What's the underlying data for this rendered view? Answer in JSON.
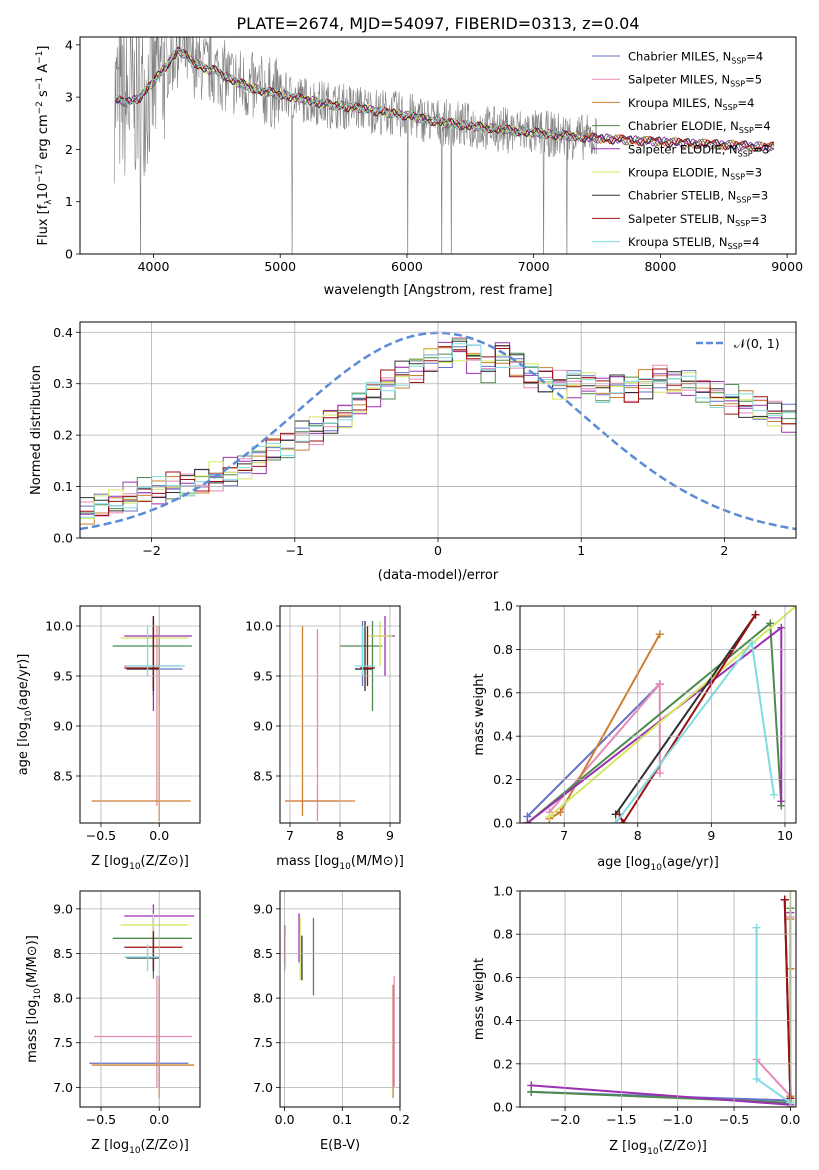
{
  "figure": {
    "title": "PLATE=2674, MJD=54097, FIBERID=0313, z=0.04"
  },
  "series": [
    {
      "label": "Chabrier MILES",
      "nssp": "4",
      "color": "#6670c8"
    },
    {
      "label": "Salpeter MILES",
      "nssp": "5",
      "color": "#e889b8"
    },
    {
      "label": "Kroupa MILES",
      "nssp": "4",
      "color": "#cd7f32"
    },
    {
      "label": "Chabrier ELODIE",
      "nssp": "4",
      "color": "#4e8a4e"
    },
    {
      "label": "Salpeter ELODIE",
      "nssp": "3",
      "color": "#9b30b0"
    },
    {
      "label": "Kroupa ELODIE",
      "nssp": "3",
      "color": "#d4e860"
    },
    {
      "label": "Chabrier STELIB",
      "nssp": "3",
      "color": "#303030"
    },
    {
      "label": "Salpeter STELIB",
      "nssp": "3",
      "color": "#9c1010"
    },
    {
      "label": "Kroupa STELIB",
      "nssp": "4",
      "color": "#80dce0"
    }
  ],
  "chart_data": [
    {
      "id": "spectrum",
      "type": "line",
      "title": "PLATE=2674, MJD=54097, FIBERID=0313, z=0.04",
      "xlabel": "wavelength [Angstrom, rest frame]",
      "ylabel_parts": [
        "Flux [f",
        "λ",
        "10",
        "−17",
        " erg cm",
        "−2",
        " s",
        "−1",
        " A",
        "−1",
        "]"
      ],
      "xlim": [
        3420,
        9070
      ],
      "ylim": [
        0,
        4.15
      ],
      "xticks": [
        4000,
        5000,
        6000,
        7000,
        8000,
        9000
      ],
      "yticks": [
        0,
        1,
        2,
        3,
        4
      ],
      "grid": false,
      "legend": "upper-right",
      "data_color": "#808080",
      "data_range": [
        3690,
        7500
      ],
      "model_x": [
        3700,
        3800,
        3900,
        4000,
        4100,
        4200,
        4300,
        4400,
        4500,
        4600,
        4800,
        5000,
        5200,
        5400,
        5600,
        5800,
        6000,
        6200,
        6400,
        6600,
        6800,
        7000,
        7200,
        7400,
        7600,
        7800,
        8000,
        8200,
        8400,
        8600,
        8800
      ],
      "model_y": [
        2.95,
        2.9,
        3.0,
        3.3,
        3.6,
        3.9,
        3.7,
        3.55,
        3.5,
        3.35,
        3.15,
        3.05,
        2.95,
        2.85,
        2.8,
        2.72,
        2.65,
        2.55,
        2.48,
        2.42,
        2.37,
        2.32,
        2.27,
        2.23,
        2.2,
        2.17,
        2.15,
        2.12,
        2.1,
        2.08,
        2.05
      ],
      "model_ranges": [
        [
          3700,
          8900
        ],
        [
          3700,
          8900
        ],
        [
          3700,
          8900
        ],
        [
          3700,
          8900
        ],
        [
          3700,
          8900
        ],
        [
          3940,
          7400
        ],
        [
          3700,
          8900
        ],
        [
          3700,
          8900
        ],
        [
          3700,
          7400
        ]
      ]
    },
    {
      "id": "residuals",
      "type": "line",
      "xlabel": "(data-model)/error",
      "ylabel": "Normed distribution",
      "xlim": [
        -2.5,
        2.5
      ],
      "ylim": [
        0,
        0.42
      ],
      "xticks": [
        -2,
        -1,
        0,
        1,
        2
      ],
      "yticks": [
        0.0,
        0.1,
        0.2,
        0.3,
        0.4
      ],
      "grid": true,
      "legend": "upper-right",
      "gauss_label": "𝒩(0, 1)",
      "gauss_color": "#5b8bd8",
      "bin_width": 0.1,
      "hist_base": [
        0.05,
        0.06,
        0.07,
        0.08,
        0.09,
        0.09,
        0.1,
        0.1,
        0.11,
        0.12,
        0.13,
        0.14,
        0.15,
        0.17,
        0.18,
        0.2,
        0.21,
        0.23,
        0.24,
        0.26,
        0.28,
        0.3,
        0.32,
        0.33,
        0.35,
        0.36,
        0.37,
        0.35,
        0.33,
        0.36,
        0.34,
        0.32,
        0.31,
        0.3,
        0.3,
        0.3,
        0.29,
        0.3,
        0.29,
        0.3,
        0.31,
        0.3,
        0.3,
        0.29,
        0.28,
        0.27,
        0.26,
        0.25,
        0.24,
        0.23,
        0.22,
        0.21,
        0.2,
        0.19,
        0.17,
        0.16,
        0.15,
        0.14,
        0.13,
        0.12,
        0.11,
        0.1,
        0.09,
        0.09,
        0.08,
        0.07,
        0.07,
        0.06,
        0.06,
        0.05
      ]
    },
    {
      "id": "age-vs-z",
      "type": "scatter",
      "xlabel": "Z [log10(Z/Z⊙)]",
      "ylabel": "age  [log10(age/yr)]",
      "xlim": [
        -0.68,
        0.35
      ],
      "ylim": [
        8.03,
        10.2
      ],
      "xticks": [
        -0.5,
        0.0
      ],
      "yticks": [
        8.5,
        9.0,
        9.5,
        10.0
      ],
      "grid": true,
      "crosses": [
        {
          "s": 0,
          "x": 0.0,
          "y": 9.57,
          "xr": [
            -0.28,
            0.2
          ],
          "yr": [
            9.2,
            10.0
          ]
        },
        {
          "s": 1,
          "x": -0.02,
          "y": 9.6,
          "xr": [
            -0.3,
            0.18
          ],
          "yr": [
            8.2,
            10.0
          ]
        },
        {
          "s": 2,
          "x": 0.0,
          "y": 8.25,
          "xr": [
            -0.58,
            0.27
          ],
          "yr": [
            8.05,
            10.0
          ]
        },
        {
          "s": 3,
          "x": -0.05,
          "y": 9.8,
          "xr": [
            -0.4,
            0.28
          ],
          "yr": [
            9.3,
            10.05
          ]
        },
        {
          "s": 4,
          "x": -0.05,
          "y": 9.9,
          "xr": [
            -0.3,
            0.28
          ],
          "yr": [
            9.15,
            10.1
          ]
        },
        {
          "s": 5,
          "x": -0.05,
          "y": 9.88,
          "xr": [
            -0.33,
            0.25
          ],
          "yr": [
            9.55,
            10.05
          ]
        },
        {
          "s": 6,
          "x": -0.05,
          "y": 9.57,
          "xr": [
            -0.28,
            0.0
          ],
          "yr": [
            9.35,
            10.1
          ]
        },
        {
          "s": 7,
          "x": -0.05,
          "y": 9.58,
          "xr": [
            -0.3,
            0.0
          ],
          "yr": [
            9.4,
            10.05
          ]
        },
        {
          "s": 8,
          "x": -0.1,
          "y": 9.6,
          "xr": [
            -0.28,
            0.22
          ],
          "yr": [
            9.5,
            10.0
          ]
        }
      ]
    },
    {
      "id": "age-vs-mass",
      "type": "scatter",
      "xlabel": "mass [log10(M/M⊙)]",
      "xlim": [
        6.8,
        9.2
      ],
      "ylim": [
        8.03,
        10.2
      ],
      "xticks": [
        7,
        8,
        9
      ],
      "yticks": [
        8.5,
        9.0,
        9.5,
        10.0
      ],
      "grid": true,
      "crosses": [
        {
          "s": 0,
          "x": 8.45,
          "y": 9.57,
          "xr": [
            8.3,
            8.62
          ],
          "yr": [
            9.4,
            10.05
          ]
        },
        {
          "s": 1,
          "x": 7.55,
          "y": 8.25,
          "xr": [
            6.9,
            8.0
          ],
          "yr": [
            8.05,
            9.97
          ]
        },
        {
          "s": 2,
          "x": 7.25,
          "y": 8.25,
          "xr": [
            6.9,
            8.3
          ],
          "yr": [
            8.1,
            10.0
          ]
        },
        {
          "s": 3,
          "x": 8.65,
          "y": 9.8,
          "xr": [
            8.0,
            8.85
          ],
          "yr": [
            9.15,
            10.05
          ]
        },
        {
          "s": 4,
          "x": 8.9,
          "y": 9.9,
          "xr": [
            8.6,
            9.1
          ],
          "yr": [
            9.5,
            10.1
          ]
        },
        {
          "s": 5,
          "x": 8.8,
          "y": 9.9,
          "xr": [
            8.55,
            9.05
          ],
          "yr": [
            9.6,
            10.05
          ]
        },
        {
          "s": 6,
          "x": 8.5,
          "y": 9.57,
          "xr": [
            8.3,
            8.65
          ],
          "yr": [
            9.35,
            10.05
          ]
        },
        {
          "s": 7,
          "x": 8.55,
          "y": 9.58,
          "xr": [
            8.4,
            8.7
          ],
          "yr": [
            9.4,
            10.0
          ]
        },
        {
          "s": 8,
          "x": 8.45,
          "y": 9.6,
          "xr": [
            8.3,
            8.7
          ],
          "yr": [
            9.5,
            10.0
          ]
        }
      ]
    },
    {
      "id": "weight-vs-age",
      "type": "line",
      "xlabel": "age  [log10(age/yr)]",
      "ylabel": "mass weight",
      "xlim": [
        6.4,
        10.15
      ],
      "ylim": [
        0,
        1.0
      ],
      "xticks": [
        7,
        8,
        9,
        10
      ],
      "yticks": [
        0.0,
        0.2,
        0.4,
        0.6,
        0.8,
        1.0
      ],
      "grid": true,
      "lines": [
        {
          "s": 0,
          "x": [
            6.5,
            8.3
          ],
          "y": [
            0.03,
            0.64
          ]
        },
        {
          "s": 1,
          "x": [
            6.8,
            8.3,
            8.3
          ],
          "y": [
            0.05,
            0.64,
            0.23
          ]
        },
        {
          "s": 2,
          "x": [
            6.8,
            6.95,
            8.3
          ],
          "y": [
            0.02,
            0.05,
            0.87
          ]
        },
        {
          "s": 3,
          "x": [
            6.5,
            9.8,
            9.95
          ],
          "y": [
            0.0,
            0.92,
            0.08
          ]
        },
        {
          "s": 4,
          "x": [
            6.5,
            9.95,
            9.95
          ],
          "y": [
            0.0,
            0.9,
            0.1
          ]
        },
        {
          "s": 5,
          "x": [
            6.8,
            10.15
          ],
          "y": [
            0.03,
            1.0
          ]
        },
        {
          "s": 6,
          "x": [
            7.7,
            9.6
          ],
          "y": [
            0.04,
            0.96
          ]
        },
        {
          "s": 7,
          "x": [
            7.75,
            7.8,
            9.6
          ],
          "y": [
            0.04,
            0.0,
            0.96
          ]
        },
        {
          "s": 8,
          "x": [
            7.7,
            9.55,
            9.85
          ],
          "y": [
            0.0,
            0.83,
            0.13
          ]
        }
      ]
    },
    {
      "id": "mass-vs-z",
      "type": "scatter",
      "xlabel": "Z [log10(Z/Z⊙)]",
      "ylabel": "mass [log10(M/M⊙)]",
      "xlim": [
        -0.68,
        0.35
      ],
      "ylim": [
        6.78,
        9.2
      ],
      "xticks": [
        -0.5,
        0.0
      ],
      "yticks": [
        7.0,
        7.5,
        8.0,
        8.5,
        9.0
      ],
      "grid": true,
      "crosses": [
        {
          "s": 0,
          "x": 0.0,
          "y": 7.27,
          "xr": [
            -0.6,
            0.25
          ],
          "yr": [
            7.0,
            8.25
          ]
        },
        {
          "s": 1,
          "x": -0.02,
          "y": 7.57,
          "xr": [
            -0.56,
            0.28
          ],
          "yr": [
            7.0,
            8.25
          ]
        },
        {
          "s": 2,
          "x": 0.0,
          "y": 7.25,
          "xr": [
            -0.58,
            0.3
          ],
          "yr": [
            6.88,
            8.2
          ]
        },
        {
          "s": 3,
          "x": -0.05,
          "y": 8.67,
          "xr": [
            -0.4,
            0.28
          ],
          "yr": [
            8.22,
            8.9
          ]
        },
        {
          "s": 4,
          "x": -0.05,
          "y": 8.92,
          "xr": [
            -0.3,
            0.3
          ],
          "yr": [
            8.6,
            9.05
          ]
        },
        {
          "s": 5,
          "x": -0.05,
          "y": 8.82,
          "xr": [
            -0.33,
            0.25
          ],
          "yr": [
            8.5,
            8.95
          ]
        },
        {
          "s": 6,
          "x": -0.05,
          "y": 8.45,
          "xr": [
            -0.28,
            0.0
          ],
          "yr": [
            8.3,
            8.7
          ]
        },
        {
          "s": 7,
          "x": -0.05,
          "y": 8.57,
          "xr": [
            -0.3,
            0.2
          ],
          "yr": [
            8.35,
            8.75
          ]
        },
        {
          "s": 8,
          "x": -0.1,
          "y": 8.46,
          "xr": [
            -0.3,
            0.0
          ],
          "yr": [
            8.3,
            8.6
          ]
        }
      ]
    },
    {
      "id": "mass-vs-ebv",
      "type": "scatter",
      "xlabel": "E(B-V)",
      "xlim": [
        -0.008,
        0.2
      ],
      "ylim": [
        6.78,
        9.2
      ],
      "xticks": [
        0.0,
        0.1,
        0.2
      ],
      "yticks": [
        7.0,
        7.5,
        8.0,
        8.5,
        9.0
      ],
      "grid": true,
      "bars": [
        {
          "s": 0,
          "x": 0.0,
          "yr": [
            8.3,
            8.8
          ]
        },
        {
          "s": 1,
          "x": 0.19,
          "yr": [
            7.0,
            8.25
          ]
        },
        {
          "s": 2,
          "x": 0.188,
          "yr": [
            6.88,
            8.15
          ]
        },
        {
          "s": 3,
          "x": 0.05,
          "yr": [
            8.03,
            8.9
          ]
        },
        {
          "s": 4,
          "x": 0.025,
          "yr": [
            8.4,
            8.95
          ]
        },
        {
          "s": 5,
          "x": 0.027,
          "yr": [
            8.2,
            8.9
          ]
        },
        {
          "s": 6,
          "x": 0.03,
          "yr": [
            8.2,
            8.7
          ]
        },
        {
          "s": 7,
          "x": 0.0,
          "yr": [
            8.4,
            8.82
          ]
        },
        {
          "s": 8,
          "x": 0.001,
          "yr": [
            8.35,
            8.72
          ]
        }
      ]
    },
    {
      "id": "weight-vs-z",
      "type": "line",
      "xlabel": "Z [log10(Z/Z⊙)]",
      "ylabel": "mass weight",
      "xlim": [
        -2.4,
        0.05
      ],
      "ylim": [
        0,
        1.0
      ],
      "xticks": [
        -2.0,
        -1.5,
        -1.0,
        -0.5,
        0.0
      ],
      "yticks": [
        0.0,
        0.2,
        0.4,
        0.6,
        0.8,
        1.0
      ],
      "grid": true,
      "lines": [
        {
          "s": 0,
          "x": [
            -2.3,
            0.0
          ],
          "y": [
            0.07,
            0.03
          ]
        },
        {
          "s": 1,
          "x": [
            -0.3,
            0.0,
            0.0
          ],
          "y": [
            0.22,
            0.05,
            0.88
          ]
        },
        {
          "s": 2,
          "x": [
            0.0,
            0.0,
            0.0
          ],
          "y": [
            0.05,
            0.64,
            0.87
          ]
        },
        {
          "s": 3,
          "x": [
            -2.3,
            0.0,
            0.0
          ],
          "y": [
            0.07,
            0.02,
            0.92
          ]
        },
        {
          "s": 4,
          "x": [
            -2.3,
            0.0,
            0.0
          ],
          "y": [
            0.1,
            0.01,
            0.9
          ]
        },
        {
          "s": 5,
          "x": [
            0.0,
            0.0
          ],
          "y": [
            0.03,
            1.0
          ]
        },
        {
          "s": 6,
          "x": [
            -0.05,
            0.0
          ],
          "y": [
            0.96,
            0.04
          ]
        },
        {
          "s": 7,
          "x": [
            -0.05,
            0.0,
            0.0
          ],
          "y": [
            0.96,
            0.04,
            0.0
          ]
        },
        {
          "s": 8,
          "x": [
            -0.3,
            -0.3,
            0.0,
            0.0
          ],
          "y": [
            0.83,
            0.13,
            0.02,
            0.0
          ]
        }
      ]
    }
  ]
}
